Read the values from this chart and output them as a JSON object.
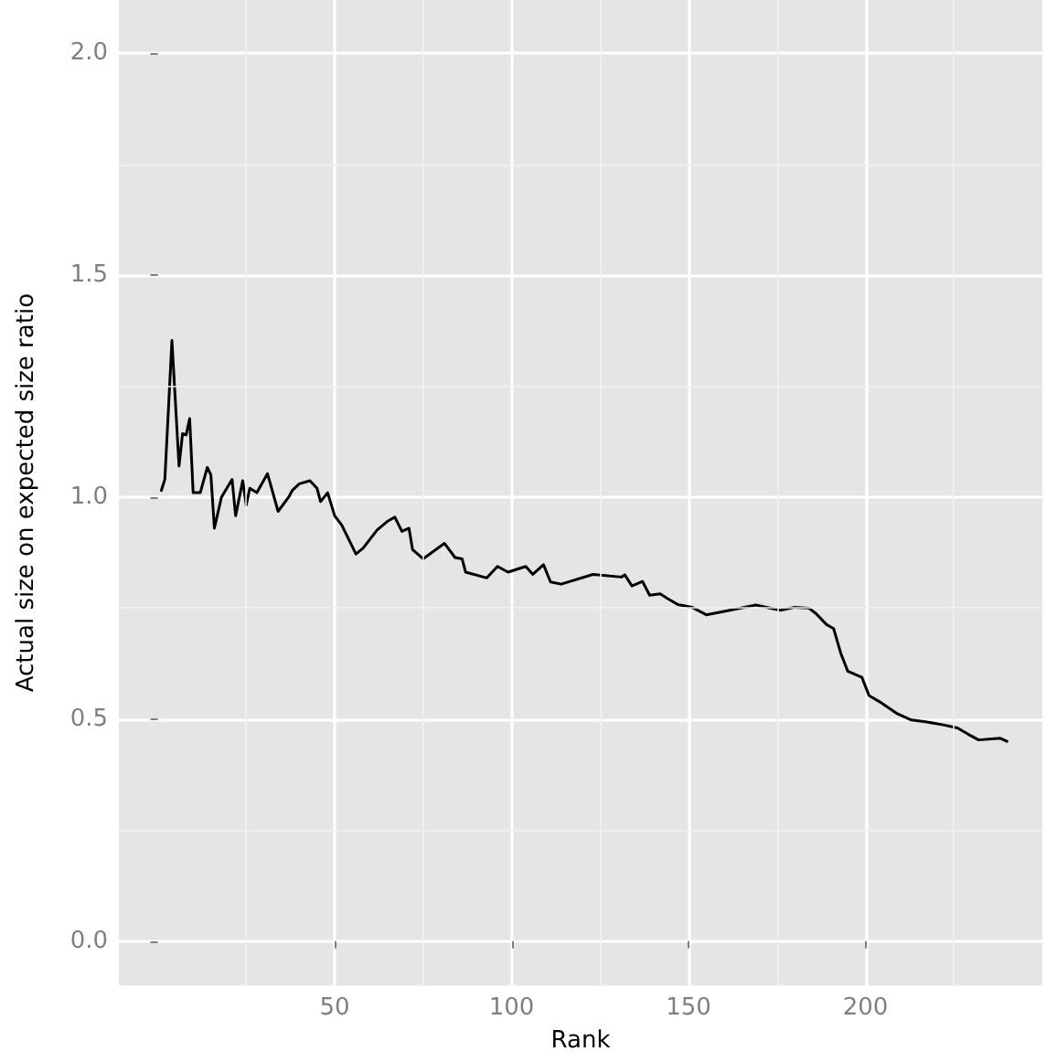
{
  "chart_data": {
    "type": "line",
    "xlabel": "Rank",
    "ylabel": "Actual size on expected size ratio",
    "x": [
      1,
      2,
      4,
      6,
      7,
      8,
      9,
      10,
      12,
      14,
      15,
      16,
      18,
      21,
      22,
      24,
      25,
      26,
      28,
      31,
      34,
      37,
      38,
      40,
      43,
      45,
      46,
      48,
      50,
      52,
      56,
      58,
      62,
      65,
      67,
      69,
      71,
      72,
      75,
      81,
      84,
      86,
      87,
      93,
      96,
      99,
      104,
      106,
      109,
      111,
      114,
      123,
      131,
      132,
      134,
      137,
      139,
      142,
      144,
      147,
      151,
      155,
      161,
      169,
      176,
      180,
      184,
      186,
      189,
      191,
      193,
      195,
      199,
      201,
      204,
      209,
      213,
      217,
      222,
      226,
      229,
      232,
      238,
      240
    ],
    "series": [
      {
        "color": "#000000",
        "values": [
          1.015,
          1.04,
          1.353,
          1.07,
          1.143,
          1.14,
          1.177,
          1.01,
          1.01,
          1.067,
          1.05,
          0.93,
          1.0,
          1.04,
          0.958,
          1.037,
          0.982,
          1.02,
          1.01,
          1.053,
          0.968,
          1.0,
          1.015,
          1.03,
          1.037,
          1.02,
          0.99,
          1.01,
          0.958,
          0.937,
          0.872,
          0.885,
          0.926,
          0.946,
          0.955,
          0.923,
          0.93,
          0.882,
          0.861,
          0.896,
          0.864,
          0.861,
          0.831,
          0.818,
          0.844,
          0.831,
          0.844,
          0.826,
          0.848,
          0.809,
          0.804,
          0.826,
          0.82,
          0.825,
          0.8,
          0.81,
          0.779,
          0.782,
          0.772,
          0.758,
          0.752,
          0.735,
          0.744,
          0.757,
          0.745,
          0.752,
          0.75,
          0.738,
          0.713,
          0.704,
          0.649,
          0.608,
          0.594,
          0.553,
          0.539,
          0.512,
          0.498,
          0.494,
          0.487,
          0.48,
          0.466,
          0.453,
          0.457,
          0.45
        ]
      }
    ],
    "xlim": [
      -11,
      250
    ],
    "xticks": [
      50,
      100,
      150,
      200
    ],
    "ylim": [
      -0.1,
      2.12
    ],
    "yticks": [
      {
        "value": 0,
        "label": "0.0"
      },
      {
        "value": 0.5,
        "label": "0.5"
      },
      {
        "value": 1,
        "label": "1.0"
      },
      {
        "value": 1.5,
        "label": "1.5"
      },
      {
        "value": 2,
        "label": "2.0"
      }
    ],
    "grid": true,
    "marker": "none",
    "line_style": "solid"
  }
}
